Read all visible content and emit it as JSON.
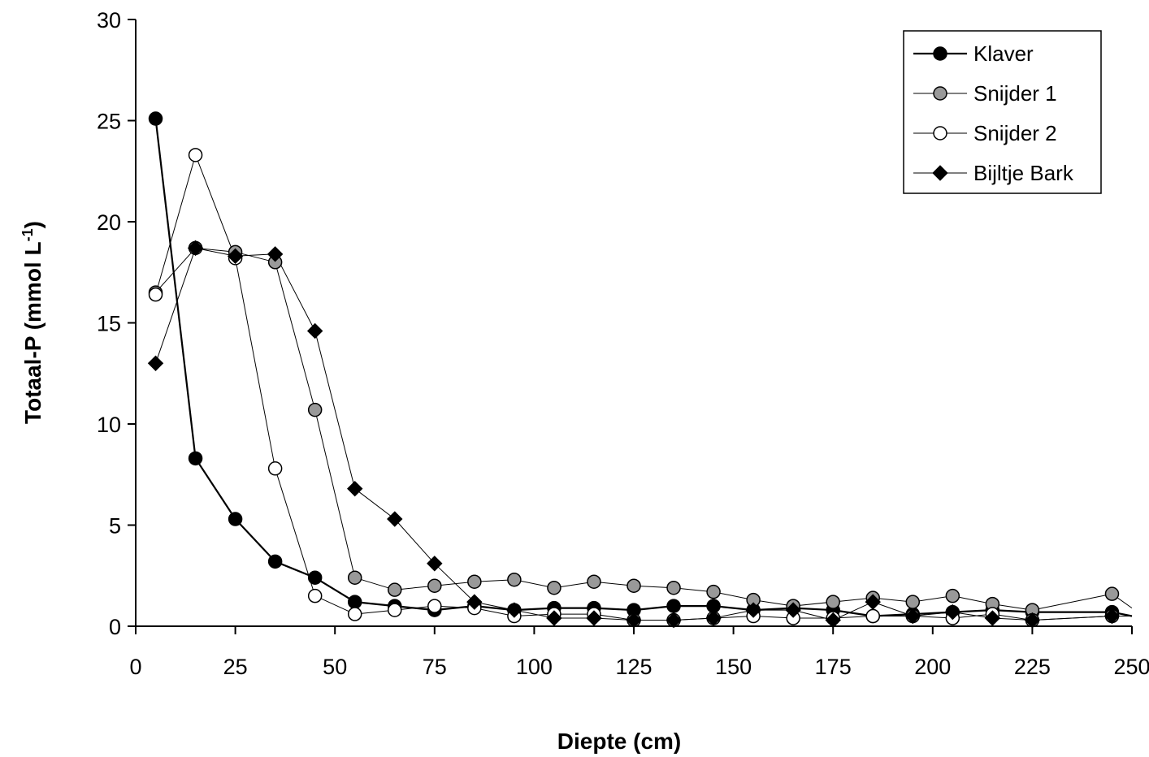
{
  "chart_data": {
    "type": "line",
    "xlabel": "Diepte (cm)",
    "ylabel": {
      "main": "Totaal-P (mmol L",
      "sup": "-1",
      "close": ")"
    },
    "xlim": [
      0,
      250
    ],
    "ylim": [
      0,
      30
    ],
    "xticks": [
      "0",
      "25",
      "50",
      "75",
      "100",
      "125",
      "150",
      "175",
      "200",
      "225",
      "250"
    ],
    "yticks": [
      "0",
      "5",
      "10",
      "15",
      "20",
      "25",
      "30"
    ],
    "grid": false,
    "legend_position": "top-right",
    "series": [
      {
        "name": "Klaver",
        "marker": "circle",
        "marker_fill": "#000000",
        "line_width": 2.2,
        "x": [
          5,
          15,
          25,
          35,
          45,
          55,
          65,
          75,
          85,
          95,
          105,
          115,
          125,
          135,
          145,
          155,
          165,
          175,
          185,
          195,
          205,
          215,
          225,
          245,
          250
        ],
        "y": [
          25.1,
          8.3,
          5.3,
          3.2,
          2.4,
          1.2,
          1.0,
          0.8,
          1.0,
          0.8,
          0.9,
          0.9,
          0.8,
          1.0,
          1.0,
          0.8,
          0.9,
          0.8,
          0.5,
          0.6,
          0.7,
          0.8,
          0.7,
          0.7,
          0.5
        ]
      },
      {
        "name": "Snijder 1",
        "marker": "circle",
        "marker_fill": "#999999",
        "line_width": 1,
        "x": [
          5,
          15,
          25,
          35,
          45,
          55,
          65,
          75,
          85,
          95,
          105,
          115,
          125,
          135,
          145,
          155,
          165,
          175,
          185,
          195,
          205,
          215,
          225,
          245,
          250
        ],
        "y": [
          16.5,
          18.7,
          18.5,
          18.0,
          10.7,
          2.4,
          1.8,
          2.0,
          2.2,
          2.3,
          1.9,
          2.2,
          2.0,
          1.9,
          1.7,
          1.3,
          1.0,
          1.2,
          1.4,
          1.2,
          1.5,
          1.1,
          0.8,
          1.6,
          0.9
        ]
      },
      {
        "name": "Snijder 2",
        "marker": "circle",
        "marker_fill": "#ffffff",
        "line_width": 1,
        "x": [
          5,
          15,
          25,
          35,
          45,
          55,
          65,
          75,
          85,
          95,
          105,
          115,
          125,
          135,
          145,
          155,
          165,
          175,
          185,
          195,
          205,
          215,
          225,
          245,
          250
        ],
        "y": [
          16.4,
          23.3,
          18.2,
          7.8,
          1.5,
          0.6,
          0.8,
          1.0,
          0.9,
          0.5,
          0.6,
          0.6,
          0.3,
          0.3,
          0.4,
          0.5,
          0.4,
          0.4,
          0.5,
          0.5,
          0.4,
          0.6,
          0.3,
          0.5,
          0.5
        ]
      },
      {
        "name": "Bijltje Bark",
        "marker": "diamond",
        "marker_fill": "#000000",
        "line_width": 1,
        "x": [
          5,
          15,
          25,
          35,
          45,
          55,
          65,
          75,
          85,
          95,
          105,
          115,
          125,
          135,
          145,
          155,
          165,
          175,
          185,
          195,
          205,
          215,
          225,
          245,
          250
        ],
        "y": [
          13.0,
          18.7,
          18.3,
          18.4,
          14.6,
          6.8,
          5.3,
          3.1,
          1.2,
          0.8,
          0.4,
          0.4,
          0.3,
          0.3,
          0.4,
          0.8,
          0.8,
          0.3,
          1.2,
          0.5,
          0.7,
          0.4,
          0.3,
          0.5,
          0.5
        ]
      }
    ]
  }
}
